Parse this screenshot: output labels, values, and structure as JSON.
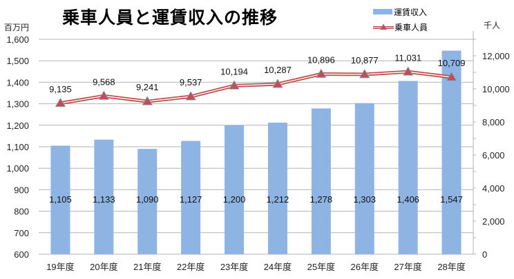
{
  "chart_data": {
    "type": "bar",
    "title": "乗車人員と運賃収入の推移",
    "categories": [
      "19年度",
      "20年度",
      "21年度",
      "22年度",
      "23年度",
      "24年度",
      "25年度",
      "26年度",
      "27年度",
      "28年度"
    ],
    "series": [
      {
        "name": "運賃収入",
        "type": "bar",
        "axis": "left",
        "unit": "百万円",
        "color": "#8eb4e3",
        "values": [
          1105,
          1133,
          1090,
          1127,
          1200,
          1212,
          1278,
          1303,
          1406,
          1547
        ],
        "labels": [
          "1,105",
          "1,133",
          "1,090",
          "1,127",
          "1,200",
          "1,212",
          "1,278",
          "1,303",
          "1,406",
          "1,547"
        ]
      },
      {
        "name": "乗車人員",
        "type": "line",
        "axis": "right",
        "unit": "千人",
        "color": "#c0504d",
        "values": [
          9135,
          9568,
          9241,
          9537,
          10194,
          10287,
          10896,
          10877,
          11031,
          10709
        ],
        "labels": [
          "9,135",
          "9,568",
          "9,241",
          "9,537",
          "10,194",
          "10,287",
          "10,896",
          "10,877",
          "11,031",
          "10,709"
        ]
      }
    ],
    "ylabel_left": "百万円",
    "ylabel_right": "千人",
    "ylim_left": [
      600,
      1600
    ],
    "ylim_right": [
      0,
      13000
    ],
    "yticks_left": [
      "600",
      "700",
      "800",
      "900",
      "1,000",
      "1,100",
      "1,200",
      "1,300",
      "1,400",
      "1,500",
      "1,600"
    ],
    "yticks_right": [
      "0",
      "2,000",
      "4,000",
      "6,000",
      "8,000",
      "10,000",
      "12,000"
    ],
    "grid": true,
    "legend_position": "top-right"
  },
  "page": {
    "title": "乗車人員と運賃収入の推移",
    "unit_left": "百万円",
    "unit_right": "千人",
    "legend_bar": "運賃収入",
    "legend_line": "乗車人員"
  }
}
